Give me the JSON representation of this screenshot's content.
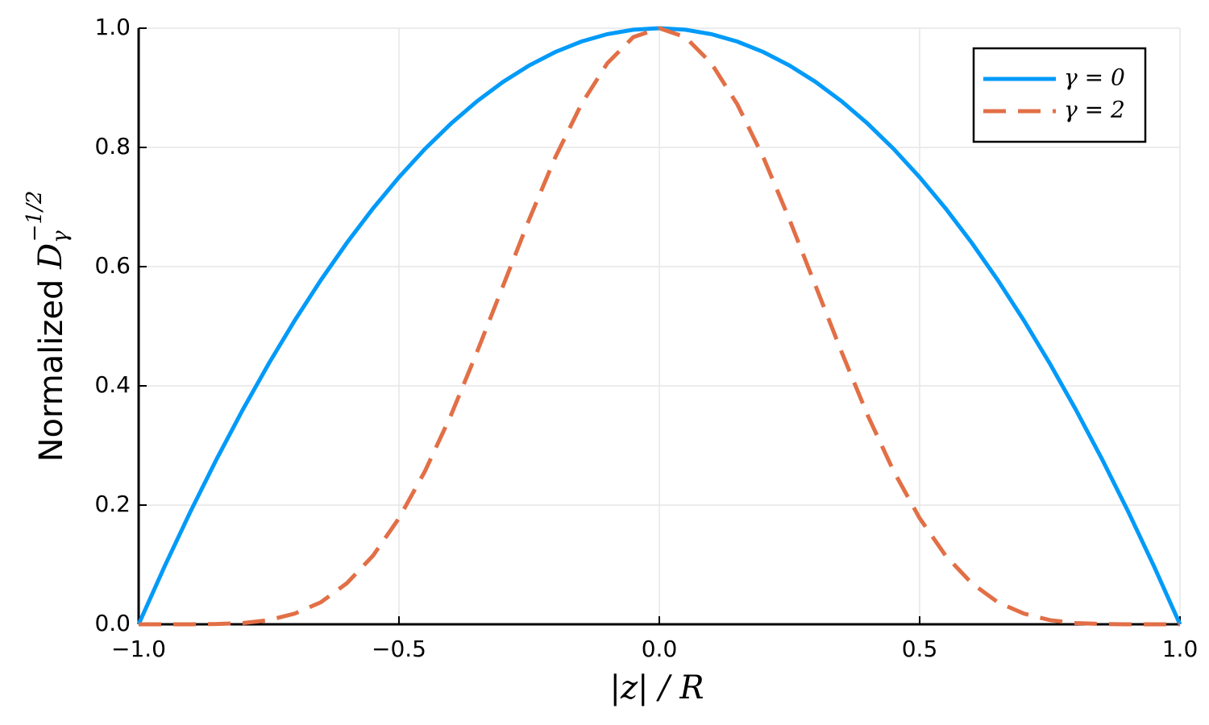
{
  "chart_data": {
    "type": "line",
    "xlabel": {
      "symbol": "|z|",
      "rest": " / R"
    },
    "ylabel": {
      "text": "Normalized ",
      "symbol": "D",
      "sub": "γ",
      "sup": "−1/2"
    },
    "x": [
      -1,
      -0.95,
      -0.9,
      -0.85,
      -0.8,
      -0.75,
      -0.7,
      -0.65,
      -0.6,
      -0.55,
      -0.5,
      -0.45,
      -0.4,
      -0.35,
      -0.3,
      -0.25,
      -0.2,
      -0.15,
      -0.1,
      -0.05,
      0,
      0.05,
      0.1,
      0.15,
      0.2,
      0.25,
      0.3,
      0.35,
      0.4,
      0.45,
      0.5,
      0.55,
      0.6,
      0.65,
      0.7,
      0.75,
      0.8,
      0.85,
      0.9,
      0.95,
      1
    ],
    "series": [
      {
        "name": "γ = 0",
        "color": "#009af9",
        "dash": false,
        "values": [
          0,
          0.0975,
          0.19,
          0.2775,
          0.36,
          0.4375,
          0.51,
          0.5775,
          0.64,
          0.6975,
          0.75,
          0.7975,
          0.84,
          0.8775,
          0.91,
          0.9375,
          0.96,
          0.9775,
          0.99,
          0.9975,
          1,
          0.9975,
          0.99,
          0.9775,
          0.96,
          0.9375,
          0.91,
          0.8775,
          0.84,
          0.7975,
          0.75,
          0.6975,
          0.64,
          0.5775,
          0.51,
          0.4375,
          0.36,
          0.2775,
          0.19,
          0.0975,
          0
        ]
      },
      {
        "name": "γ = 2",
        "color": "#e26f46",
        "dash": true,
        "values": [
          0,
          0,
          0,
          0.0005,
          0.002,
          0.007,
          0.018,
          0.037,
          0.069,
          0.115,
          0.178,
          0.257,
          0.351,
          0.457,
          0.568,
          0.679,
          0.783,
          0.872,
          0.941,
          0.985,
          1,
          0.985,
          0.941,
          0.872,
          0.783,
          0.679,
          0.568,
          0.457,
          0.351,
          0.257,
          0.178,
          0.115,
          0.069,
          0.037,
          0.018,
          0.007,
          0.002,
          0.0005,
          0,
          0,
          0
        ]
      }
    ],
    "xlim": [
      -1,
      1
    ],
    "xticks": [
      {
        "value": -1,
        "label": "−1.0"
      },
      {
        "value": -0.5,
        "label": "−0.5"
      },
      {
        "value": 0,
        "label": "0.0"
      },
      {
        "value": 0.5,
        "label": "0.5"
      },
      {
        "value": 1,
        "label": "1.0"
      }
    ],
    "ylim": [
      0,
      1
    ],
    "yticks": [
      {
        "value": 0,
        "label": "0.0"
      },
      {
        "value": 0.2,
        "label": "0.2"
      },
      {
        "value": 0.4,
        "label": "0.4"
      },
      {
        "value": 0.6,
        "label": "0.6"
      },
      {
        "value": 0.8,
        "label": "0.8"
      },
      {
        "value": 1,
        "label": "1.0"
      }
    ],
    "grid": true,
    "legend": "top-right"
  }
}
